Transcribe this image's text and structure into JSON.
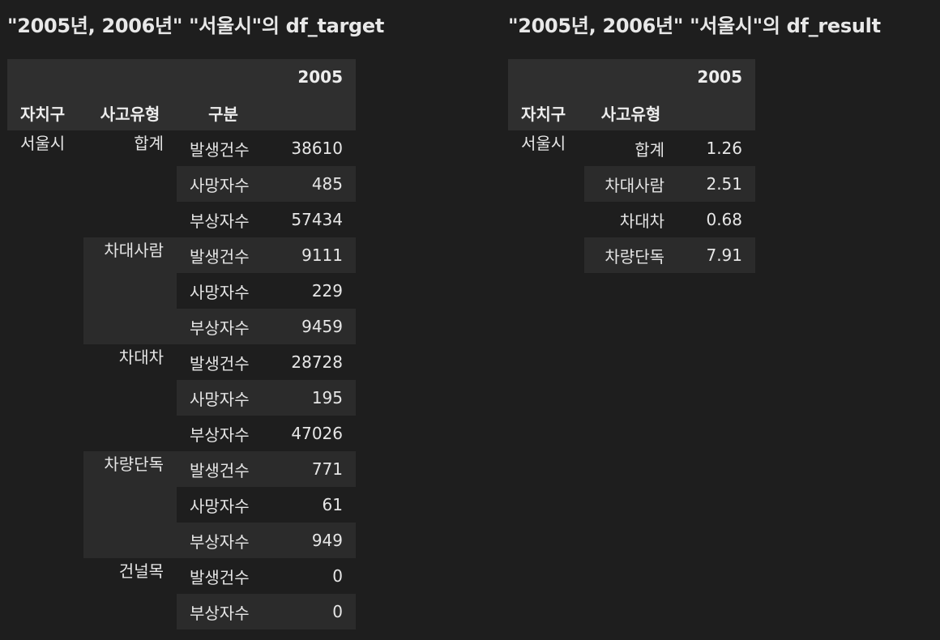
{
  "left": {
    "title": "\"2005년, 2006년\" \"서울시\"의 df_target",
    "column_header": "2005",
    "index_names": [
      "자치구",
      "사고유형",
      "구분"
    ],
    "gu": "서울시",
    "groups": [
      {
        "type": "합계",
        "rows": [
          {
            "kind": "발생건수",
            "value": "38610"
          },
          {
            "kind": "사망자수",
            "value": "485"
          },
          {
            "kind": "부상자수",
            "value": "57434"
          }
        ]
      },
      {
        "type": "차대사람",
        "rows": [
          {
            "kind": "발생건수",
            "value": "9111"
          },
          {
            "kind": "사망자수",
            "value": "229"
          },
          {
            "kind": "부상자수",
            "value": "9459"
          }
        ]
      },
      {
        "type": "차대차",
        "rows": [
          {
            "kind": "발생건수",
            "value": "28728"
          },
          {
            "kind": "사망자수",
            "value": "195"
          },
          {
            "kind": "부상자수",
            "value": "47026"
          }
        ]
      },
      {
        "type": "차량단독",
        "rows": [
          {
            "kind": "발생건수",
            "value": "771"
          },
          {
            "kind": "사망자수",
            "value": "61"
          },
          {
            "kind": "부상자수",
            "value": "949"
          }
        ]
      },
      {
        "type": "건널목",
        "rows": [
          {
            "kind": "발생건수",
            "value": "0"
          },
          {
            "kind": "부상자수",
            "value": "0"
          }
        ]
      }
    ]
  },
  "right": {
    "title": "\"2005년, 2006년\" \"서울시\"의 df_result",
    "column_header": "2005",
    "index_names": [
      "자치구",
      "사고유형"
    ],
    "gu": "서울시",
    "rows": [
      {
        "type": "합계",
        "value": "1.26"
      },
      {
        "type": "차대사람",
        "value": "2.51"
      },
      {
        "type": "차대차",
        "value": "0.68"
      },
      {
        "type": "차량단독",
        "value": "7.91"
      }
    ]
  }
}
